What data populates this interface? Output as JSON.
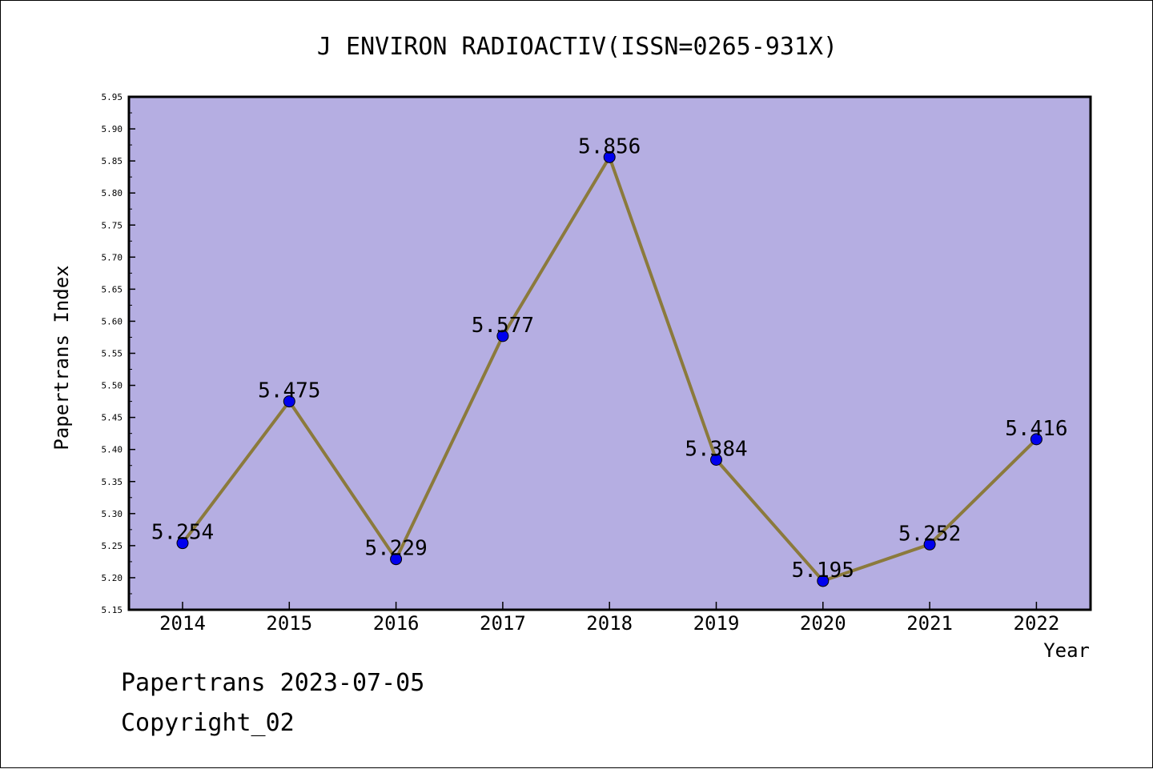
{
  "chart_data": {
    "type": "line",
    "title": "J ENVIRON RADIOACTIV(ISSN=0265-931X)",
    "xlabel": "Year",
    "ylabel": "Papertrans Index",
    "categories": [
      "2014",
      "2015",
      "2016",
      "2017",
      "2018",
      "2019",
      "2020",
      "2021",
      "2022"
    ],
    "values": [
      5.254,
      5.475,
      5.229,
      5.577,
      5.856,
      5.384,
      5.195,
      5.252,
      5.416
    ],
    "data_labels": [
      "5.254",
      "5.475",
      "5.229",
      "5.577",
      "5.856",
      "5.384",
      "5.195",
      "5.252",
      "5.416"
    ],
    "ylim": [
      5.15,
      5.95
    ],
    "yticks": [
      "5.15",
      "5.20",
      "5.25",
      "5.30",
      "5.35",
      "5.40",
      "5.45",
      "5.50",
      "5.55",
      "5.60",
      "5.65",
      "5.70",
      "5.75",
      "5.80",
      "5.85",
      "5.90",
      "5.95"
    ],
    "grid": false,
    "legend": "none",
    "colors": {
      "plot_background": "#b5aee2",
      "line": "#8b7a3c",
      "marker": "#0000ee",
      "axis": "#000000"
    }
  },
  "footer": {
    "date_line": "Papertrans 2023-07-05",
    "copyright_line": "Copyright_02"
  }
}
